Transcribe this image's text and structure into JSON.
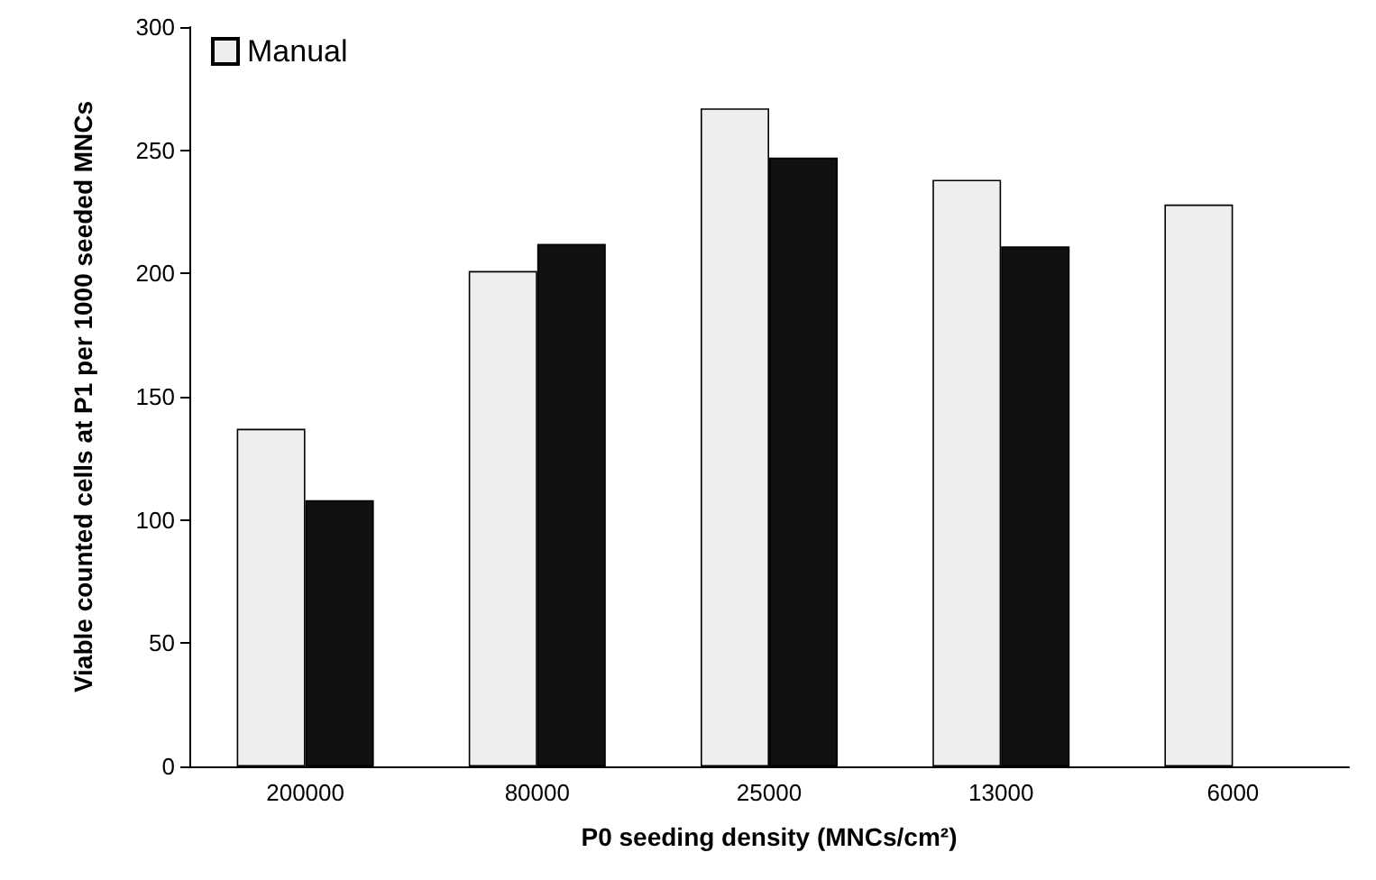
{
  "chart_data": {
    "type": "bar",
    "xlabel": "P0 seeding density (MNCs/cm²)",
    "ylabel": "Viable counted cells at P1 per 1000 seeded MNCs",
    "categories": [
      "200000",
      "80000",
      "25000",
      "13000",
      "6000"
    ],
    "series": [
      {
        "name": "Manual",
        "color": "#eeeeee",
        "values": [
          137,
          201,
          267,
          238,
          228
        ]
      },
      {
        "color": "#111111",
        "values": [
          108,
          212,
          247,
          211,
          null
        ]
      }
    ],
    "ylim": [
      0,
      300
    ],
    "yticks": [
      0,
      50,
      100,
      150,
      200,
      250,
      300
    ],
    "grid": false,
    "legend": "top left"
  }
}
